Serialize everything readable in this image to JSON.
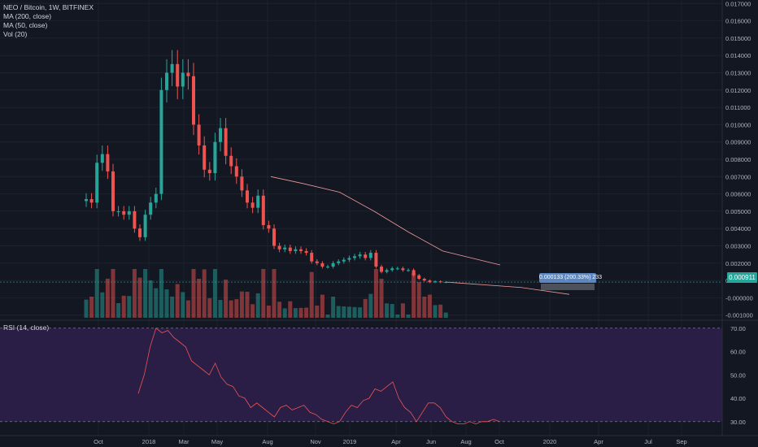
{
  "legend": {
    "symbol": "NEO / Bitcoin, 1W, BITFINEX",
    "ma200": "MA (200, close)",
    "ma50": "MA (50, close)",
    "vol": "Vol (20)"
  },
  "rsi_label": "RSI (14, close)",
  "last_price": "0.000911",
  "measure_label": "0.000133 (200.33%) 233",
  "colors": {
    "background": "#131722",
    "up": "#26a69a",
    "down": "#ef5350",
    "ma": "#ef9a9a",
    "rsi_band": "#2a1e47",
    "rsi_line": "#ef5350",
    "grid": "#1e222d"
  },
  "chart_data": [
    {
      "type": "candlestick",
      "price_axis": {
        "ticks": [
          "0.017000",
          "0.016000",
          "0.015000",
          "0.014000",
          "0.013000",
          "0.012000",
          "0.011000",
          "0.010000",
          "0.009000",
          "0.008000",
          "0.007000",
          "0.006000",
          "0.005000",
          "0.004000",
          "0.003000",
          "0.002000",
          "0.001000",
          "-0.000000",
          "-0.001000"
        ],
        "range": [
          -0.0012,
          0.0172
        ]
      },
      "time_axis": {
        "labels": [
          "Oct",
          "2018",
          "Mar",
          "May",
          "Aug",
          "Nov",
          "2019",
          "Apr",
          "Jun",
          "Aug",
          "Oct",
          "2020",
          "Apr",
          "Jul",
          "Sep"
        ]
      },
      "approx_close_series": [
        0.0057,
        0.0055,
        0.0078,
        0.0083,
        0.0073,
        0.005,
        0.005,
        0.0048,
        0.005,
        0.004,
        0.0035,
        0.0048,
        0.0055,
        0.006,
        0.012,
        0.013,
        0.0135,
        0.0122,
        0.013,
        0.0128,
        0.01,
        0.0088,
        0.0074,
        0.0072,
        0.009,
        0.0098,
        0.0082,
        0.0076,
        0.007,
        0.0062,
        0.0055,
        0.0052,
        0.0059,
        0.0042,
        0.004,
        0.003,
        0.0028,
        0.0029,
        0.0027,
        0.0028,
        0.0027,
        0.0026,
        0.0021,
        0.002,
        0.0018,
        0.0018,
        0.002,
        0.0021,
        0.0022,
        0.0023,
        0.0024,
        0.0025,
        0.0023,
        0.0026,
        0.0018,
        0.0015,
        0.0016,
        0.0017,
        0.0017,
        0.0016,
        0.0016,
        0.0013,
        0.0011,
        0.001,
        0.0009,
        0.00095,
        0.0009,
        0.00091
      ],
      "moving_average": {
        "name": "MA (200, close)",
        "points": [
          [
            0.007,
            0
          ],
          [
            0.0066,
            0.14
          ],
          [
            0.0061,
            0.3
          ],
          [
            0.005,
            0.45
          ],
          [
            0.0038,
            0.6
          ],
          [
            0.0027,
            0.75
          ],
          [
            0.0019,
            1.0
          ]
        ]
      }
    },
    {
      "type": "line",
      "name": "RSI (14, close)",
      "y_axis": {
        "ticks": [
          "70.00",
          "60.00",
          "50.00",
          "40.00",
          "30.00"
        ],
        "range": [
          24,
          72
        ]
      },
      "upper_band": 70,
      "lower_band": 30,
      "values": [
        42,
        50,
        62,
        70,
        68,
        69,
        66,
        64,
        62,
        56,
        54,
        52,
        50,
        55,
        49,
        46,
        45,
        41,
        40,
        36,
        38,
        36,
        34,
        32,
        36,
        37,
        35,
        36,
        37,
        34,
        33,
        31,
        30,
        29,
        30,
        34,
        37,
        36,
        39,
        40,
        44,
        43,
        45,
        47,
        40,
        36,
        34,
        30,
        34,
        38,
        38,
        36,
        32,
        30,
        29,
        29,
        30,
        29,
        30,
        30,
        31,
        30
      ]
    }
  ]
}
